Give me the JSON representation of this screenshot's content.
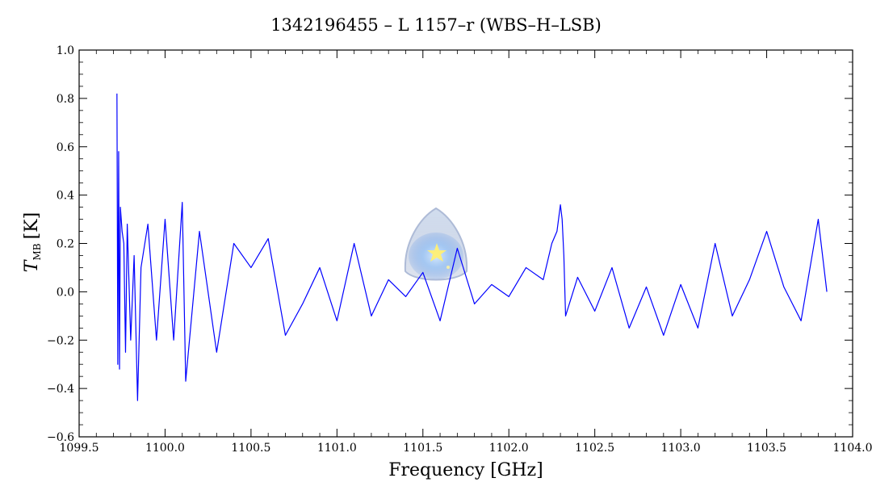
{
  "chart_data": {
    "type": "line",
    "title": "1342196455 – L 1157–r (WBS–H–LSB)",
    "xlabel": "Frequency [GHz]",
    "ylabel": {
      "symbol": "T",
      "subscript": "MB",
      "unit": "[K]"
    },
    "xlim": [
      1099.5,
      1104.0
    ],
    "ylim": [
      -0.6,
      1.0
    ],
    "xticks": [
      1099.5,
      1100.0,
      1100.5,
      1101.0,
      1101.5,
      1102.0,
      1102.5,
      1103.0,
      1103.5,
      1104.0
    ],
    "xtick_labels": [
      "1099.5",
      "1100.0",
      "1100.5",
      "1101.0",
      "1101.5",
      "1102.0",
      "1102.5",
      "1103.0",
      "1103.5",
      "1104.0"
    ],
    "yticks": [
      -0.6,
      -0.4,
      -0.2,
      0.0,
      0.2,
      0.4,
      0.6,
      0.8,
      1.0
    ],
    "ytick_labels": [
      "−0.6",
      "−0.4",
      "−0.2",
      "0.0",
      "0.2",
      "0.4",
      "0.6",
      "0.8",
      "1.0"
    ],
    "grid": false,
    "line_color": "#0000ff",
    "series": [
      {
        "x": [
          1099.72,
          1099.725,
          1099.73,
          1099.735,
          1099.74,
          1099.75,
          1099.76,
          1099.77,
          1099.78,
          1099.8,
          1099.82,
          1099.84,
          1099.86,
          1099.9,
          1099.95,
          1100.0,
          1100.05,
          1100.1,
          1100.12,
          1100.2,
          1100.3,
          1100.4,
          1100.5,
          1100.6,
          1100.7,
          1100.8,
          1100.9,
          1101.0,
          1101.1,
          1101.2,
          1101.3,
          1101.4,
          1101.5,
          1101.6,
          1101.7,
          1101.8,
          1101.9,
          1102.0,
          1102.1,
          1102.2,
          1102.25,
          1102.28,
          1102.3,
          1102.31,
          1102.32,
          1102.33,
          1102.4,
          1102.5,
          1102.6,
          1102.7,
          1102.8,
          1102.9,
          1103.0,
          1103.1,
          1103.2,
          1103.3,
          1103.4,
          1103.5,
          1103.6,
          1103.7,
          1103.8,
          1103.85
        ],
        "values": [
          0.82,
          -0.3,
          0.58,
          -0.32,
          0.35,
          0.25,
          0.2,
          -0.25,
          0.28,
          -0.2,
          0.15,
          -0.45,
          0.1,
          0.28,
          -0.2,
          0.3,
          -0.2,
          0.37,
          -0.37,
          0.25,
          -0.25,
          0.2,
          0.1,
          0.22,
          -0.18,
          -0.05,
          0.1,
          -0.12,
          0.2,
          -0.1,
          0.05,
          -0.02,
          0.08,
          -0.12,
          0.18,
          -0.05,
          0.03,
          -0.02,
          0.1,
          0.05,
          0.2,
          0.25,
          0.36,
          0.3,
          0.15,
          -0.1,
          0.06,
          -0.08,
          0.1,
          -0.15,
          0.02,
          -0.18,
          0.03,
          -0.15,
          0.2,
          -0.1,
          0.05,
          0.25,
          0.02,
          -0.12,
          0.3,
          0.0
        ]
      }
    ]
  },
  "overlay": {
    "watermark_icon": "herschel-logo-icon"
  }
}
